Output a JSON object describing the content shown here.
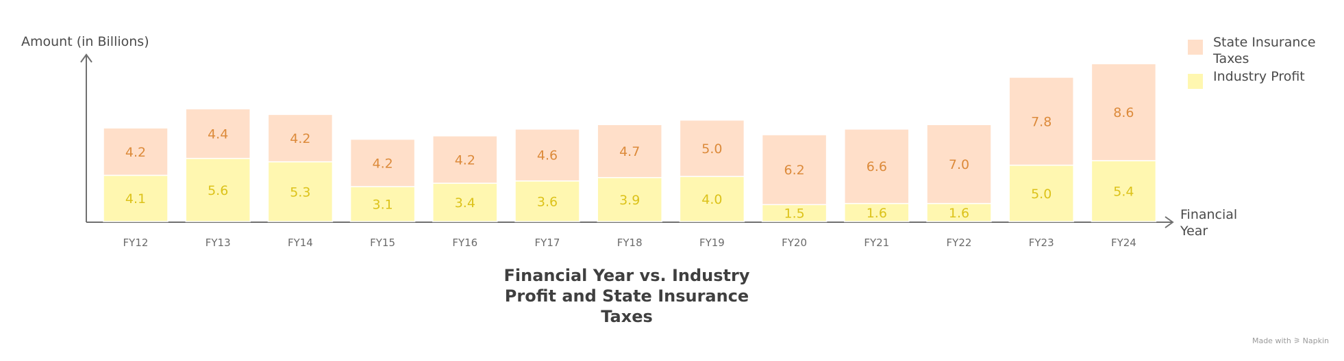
{
  "chart_data": {
    "type": "bar",
    "stacked": true,
    "title": "Financial Year vs. Industry Profit and State Insurance Taxes",
    "xlabel": "Financial Year",
    "ylabel": "Amount (in Billions)",
    "categories": [
      "FY12",
      "FY13",
      "FY14",
      "FY15",
      "FY16",
      "FY17",
      "FY18",
      "FY19",
      "FY20",
      "FY21",
      "FY22",
      "FY23",
      "FY24"
    ],
    "series": [
      {
        "name": "Industry Profit",
        "values": [
          4.1,
          5.6,
          5.3,
          3.1,
          3.4,
          3.6,
          3.9,
          4.0,
          1.5,
          1.6,
          1.6,
          5.0,
          5.4
        ],
        "color": "#fff7b0",
        "label_color": "#dcc21a"
      },
      {
        "name": "State Insurance Taxes",
        "values": [
          4.2,
          4.4,
          4.2,
          4.2,
          4.2,
          4.6,
          4.7,
          5.0,
          6.2,
          6.6,
          7.0,
          7.8,
          8.6
        ],
        "color": "#ffdfc9",
        "label_color": "#dc8a3a"
      }
    ],
    "ylim": [
      0,
      14.8
    ],
    "legend_position": "top-right",
    "grid": false
  },
  "watermark": "Made with ⚞ Napkin"
}
